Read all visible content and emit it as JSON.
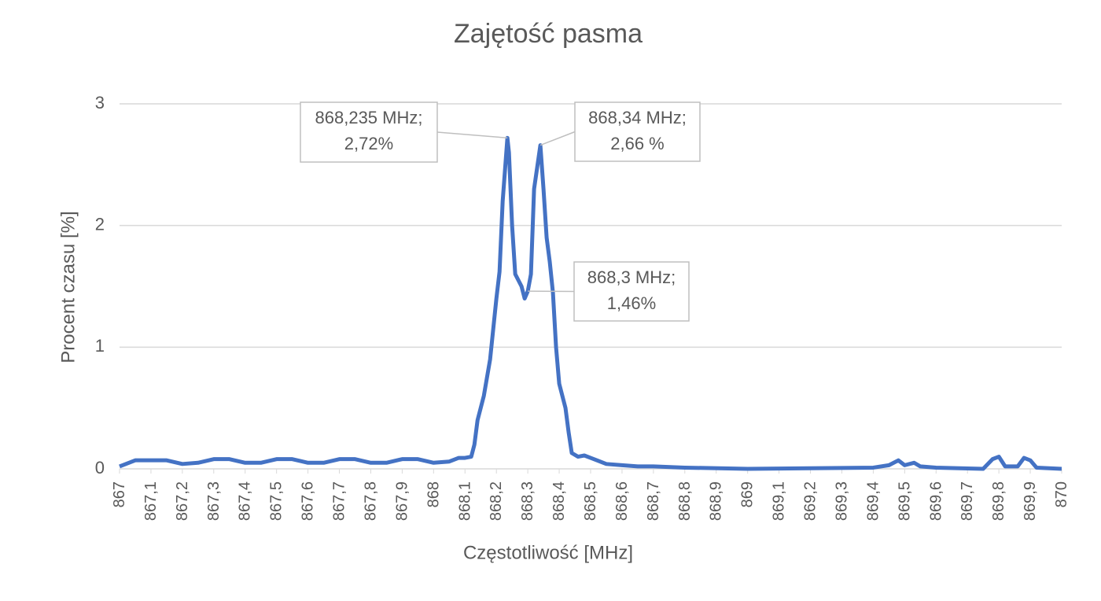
{
  "chart_data": {
    "type": "line",
    "title": "Zajętość pasma",
    "x_label": "Częstotliwość [MHz]",
    "y_label": "Procent czasu [%]",
    "xlim": [
      867,
      870
    ],
    "ylim": [
      0,
      3
    ],
    "xticks": [
      867,
      {
        "value": 867.1,
        "label": "867,1"
      },
      {
        "value": 867.2,
        "label": "867,2"
      },
      {
        "value": 867.3,
        "label": "867,3"
      },
      {
        "value": 867.4,
        "label": "867,4"
      },
      {
        "value": 867.5,
        "label": "867,5"
      },
      {
        "value": 867.6,
        "label": "867,6"
      },
      {
        "value": 867.7,
        "label": "867,7"
      },
      {
        "value": 867.8,
        "label": "867,8"
      },
      {
        "value": 867.9,
        "label": "867,9"
      },
      868,
      {
        "value": 868.1,
        "label": "868,1"
      },
      {
        "value": 868.2,
        "label": "868,2"
      },
      {
        "value": 868.3,
        "label": "868,3"
      },
      {
        "value": 868.4,
        "label": "868,4"
      },
      {
        "value": 868.5,
        "label": "868,5"
      },
      {
        "value": 868.6,
        "label": "868,6"
      },
      {
        "value": 868.7,
        "label": "868,7"
      },
      {
        "value": 868.8,
        "label": "868,8"
      },
      {
        "value": 868.9,
        "label": "868,9"
      },
      869,
      {
        "value": 869.1,
        "label": "869,1"
      },
      {
        "value": 869.2,
        "label": "869,2"
      },
      {
        "value": 869.3,
        "label": "869,3"
      },
      {
        "value": 869.4,
        "label": "869,4"
      },
      {
        "value": 869.5,
        "label": "869,5"
      },
      {
        "value": 869.6,
        "label": "869,6"
      },
      {
        "value": 869.7,
        "label": "869,7"
      },
      {
        "value": 869.8,
        "label": "869,8"
      },
      {
        "value": 869.9,
        "label": "869,9"
      },
      870
    ],
    "yticks": [
      0,
      1,
      2,
      3
    ],
    "grid": true,
    "series": [
      {
        "color": "#4472c4",
        "x": [
          867,
          867.05,
          867.1,
          867.15,
          867.2,
          867.25,
          867.3,
          867.35,
          867.4,
          867.45,
          867.5,
          867.55,
          867.6,
          867.65,
          867.7,
          867.75,
          867.8,
          867.85,
          867.9,
          867.95,
          868,
          868.05,
          868.08,
          868.1,
          868.12,
          868.13,
          868.14,
          868.16,
          868.18,
          868.2,
          868.21,
          868.22,
          868.235,
          868.24,
          868.25,
          868.26,
          868.28,
          868.29,
          868.3,
          868.31,
          868.32,
          868.34,
          868.35,
          868.36,
          868.37,
          868.38,
          868.39,
          868.4,
          868.42,
          868.43,
          868.44,
          868.46,
          868.48,
          868.5,
          868.55,
          868.6,
          868.65,
          868.7,
          868.8,
          869,
          869.4,
          869.45,
          869.48,
          869.5,
          869.53,
          869.55,
          869.6,
          869.75,
          869.78,
          869.8,
          869.82,
          869.86,
          869.88,
          869.9,
          869.92,
          870
        ],
        "values": [
          0.02,
          0.07,
          0.07,
          0.07,
          0.04,
          0.05,
          0.08,
          0.08,
          0.05,
          0.05,
          0.08,
          0.08,
          0.05,
          0.05,
          0.08,
          0.08,
          0.05,
          0.05,
          0.08,
          0.08,
          0.05,
          0.06,
          0.09,
          0.09,
          0.1,
          0.2,
          0.4,
          0.6,
          0.9,
          1.4,
          1.62,
          2.2,
          2.72,
          2.6,
          2.0,
          1.6,
          1.5,
          1.4,
          1.46,
          1.6,
          2.3,
          2.66,
          2.3,
          1.9,
          1.7,
          1.45,
          1.0,
          0.7,
          0.5,
          0.3,
          0.13,
          0.1,
          0.11,
          0.09,
          0.04,
          0.03,
          0.02,
          0.02,
          0.01,
          0.0,
          0.01,
          0.03,
          0.07,
          0.03,
          0.05,
          0.02,
          0.01,
          0.0,
          0.08,
          0.1,
          0.02,
          0.02,
          0.09,
          0.07,
          0.01,
          0.0
        ]
      }
    ],
    "annotations": [
      {
        "x": 868.235,
        "y": 2.72,
        "lines": [
          "868,235 MHz;",
          "2,72%"
        ]
      },
      {
        "x": 868.34,
        "y": 2.66,
        "lines": [
          "868,34 MHz;",
          "2,66 %"
        ]
      },
      {
        "x": 868.3,
        "y": 1.46,
        "lines": [
          "868,3 MHz;",
          "1,46%"
        ]
      }
    ]
  }
}
